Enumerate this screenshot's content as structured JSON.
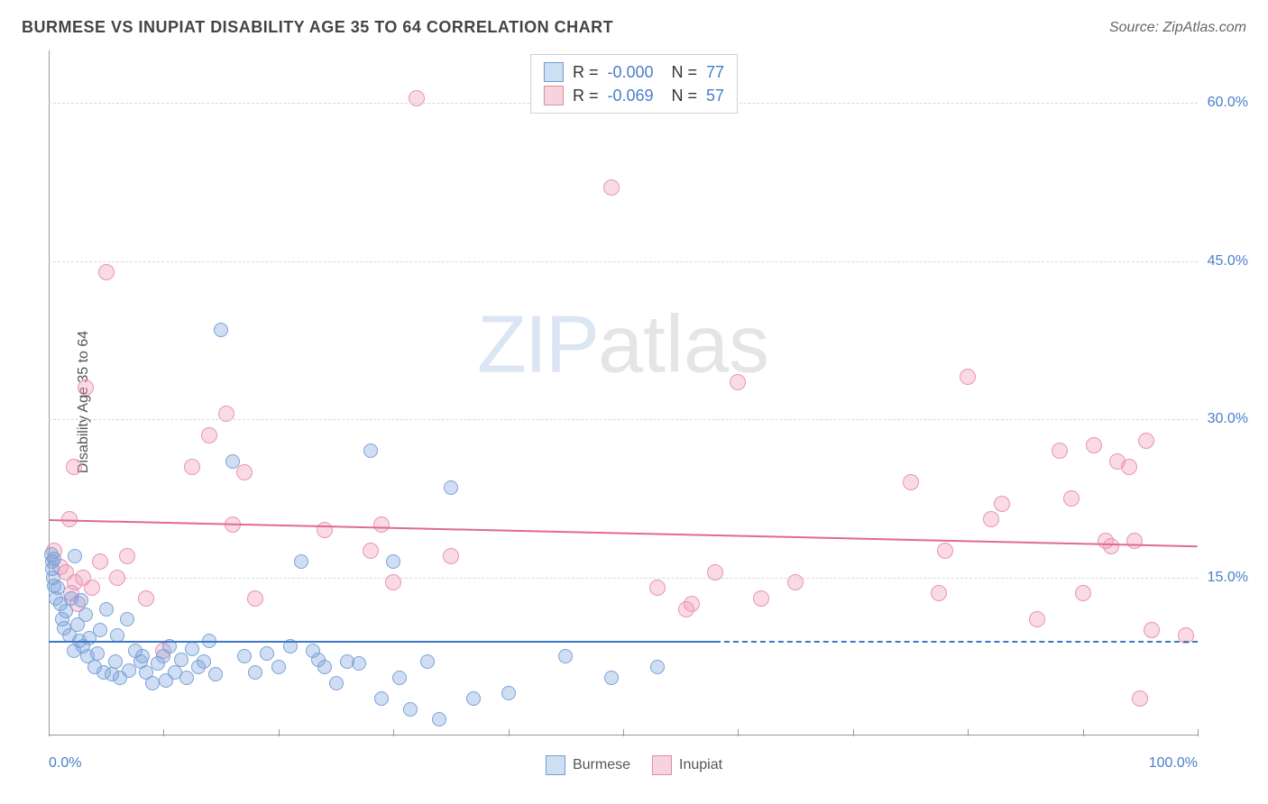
{
  "title": "BURMESE VS INUPIAT DISABILITY AGE 35 TO 64 CORRELATION CHART",
  "source": "Source: ZipAtlas.com",
  "ylabel": "Disability Age 35 to 64",
  "watermark": {
    "prefix": "ZIP",
    "suffix": "atlas"
  },
  "chart": {
    "xlim": [
      0,
      100
    ],
    "ylim": [
      0,
      65
    ],
    "x_min_label": "0.0%",
    "x_max_label": "100.0%",
    "y_ticks": [
      {
        "v": 15,
        "label": "15.0%"
      },
      {
        "v": 30,
        "label": "30.0%"
      },
      {
        "v": 45,
        "label": "45.0%"
      },
      {
        "v": 60,
        "label": "60.0%"
      }
    ],
    "x_tick_step": 10,
    "grid_color": "#d8d8d8"
  },
  "series": {
    "burmese": {
      "label": "Burmese",
      "color_fill": "rgba(120,160,220,0.35)",
      "color_stroke": "#7aa3d8",
      "swatch_fill": "#cddff2",
      "swatch_border": "#6f9dd4",
      "R": "-0.000",
      "N": "77",
      "trend_color": "#3d78c7",
      "trend_y_start": 9.0,
      "trend_y_end": 9.0,
      "solid_x_end": 58,
      "points": [
        [
          0.2,
          17.2
        ],
        [
          0.3,
          16.5
        ],
        [
          0.3,
          15.8
        ],
        [
          0.4,
          15.0
        ],
        [
          0.5,
          14.2
        ],
        [
          0.6,
          13.0
        ],
        [
          0.8,
          14.0
        ],
        [
          1.0,
          12.5
        ],
        [
          0.5,
          16.8
        ],
        [
          1.2,
          11.0
        ],
        [
          1.3,
          10.2
        ],
        [
          1.5,
          11.8
        ],
        [
          1.8,
          9.5
        ],
        [
          2.0,
          13.0
        ],
        [
          2.2,
          8.0
        ],
        [
          2.3,
          17.0
        ],
        [
          2.5,
          10.5
        ],
        [
          2.7,
          9.0
        ],
        [
          2.8,
          12.8
        ],
        [
          3.0,
          8.5
        ],
        [
          3.2,
          11.5
        ],
        [
          3.4,
          7.5
        ],
        [
          3.5,
          9.2
        ],
        [
          4.0,
          6.5
        ],
        [
          4.2,
          7.8
        ],
        [
          4.5,
          10.0
        ],
        [
          4.8,
          6.0
        ],
        [
          5.0,
          12.0
        ],
        [
          5.5,
          5.8
        ],
        [
          5.8,
          7.0
        ],
        [
          6.0,
          9.5
        ],
        [
          6.2,
          5.5
        ],
        [
          6.8,
          11.0
        ],
        [
          7.0,
          6.2
        ],
        [
          7.5,
          8.0
        ],
        [
          8.0,
          7.0
        ],
        [
          8.2,
          7.5
        ],
        [
          8.5,
          6.0
        ],
        [
          9.0,
          5.0
        ],
        [
          9.5,
          6.8
        ],
        [
          10.0,
          7.5
        ],
        [
          10.2,
          5.2
        ],
        [
          10.5,
          8.5
        ],
        [
          11.0,
          6.0
        ],
        [
          11.5,
          7.2
        ],
        [
          12.0,
          5.5
        ],
        [
          12.5,
          8.2
        ],
        [
          13.0,
          6.5
        ],
        [
          13.5,
          7.0
        ],
        [
          14.0,
          9.0
        ],
        [
          14.5,
          5.8
        ],
        [
          15.0,
          38.5
        ],
        [
          16.0,
          26.0
        ],
        [
          17.0,
          7.5
        ],
        [
          18.0,
          6.0
        ],
        [
          19.0,
          7.8
        ],
        [
          20.0,
          6.5
        ],
        [
          21.0,
          8.5
        ],
        [
          22.0,
          16.5
        ],
        [
          23.0,
          8.0
        ],
        [
          23.5,
          7.2
        ],
        [
          24.0,
          6.5
        ],
        [
          25.0,
          5.0
        ],
        [
          26.0,
          7.0
        ],
        [
          27.0,
          6.8
        ],
        [
          28.0,
          27.0
        ],
        [
          29.0,
          3.5
        ],
        [
          30.0,
          16.5
        ],
        [
          30.5,
          5.5
        ],
        [
          31.5,
          2.5
        ],
        [
          33.0,
          7.0
        ],
        [
          34.0,
          1.5
        ],
        [
          35.0,
          23.5
        ],
        [
          37.0,
          3.5
        ],
        [
          40.0,
          4.0
        ],
        [
          45.0,
          7.5
        ],
        [
          49.0,
          5.5
        ],
        [
          53.0,
          6.5
        ]
      ]
    },
    "inupiat": {
      "label": "Inupiat",
      "color_fill": "rgba(240,150,180,0.35)",
      "color_stroke": "#e896b0",
      "swatch_fill": "#f5d4de",
      "swatch_border": "#e08ca8",
      "R": "-0.069",
      "N": "57",
      "trend_color": "#e06b8f",
      "trend_y_start": 20.5,
      "trend_y_end": 18.0,
      "solid_x_end": 100,
      "points": [
        [
          0.5,
          17.5
        ],
        [
          1.0,
          16.0
        ],
        [
          1.5,
          15.5
        ],
        [
          1.8,
          20.5
        ],
        [
          2.0,
          13.5
        ],
        [
          2.2,
          25.5
        ],
        [
          2.3,
          14.5
        ],
        [
          2.5,
          12.5
        ],
        [
          3.0,
          15.0
        ],
        [
          3.2,
          33.0
        ],
        [
          3.8,
          14.0
        ],
        [
          4.5,
          16.5
        ],
        [
          5.0,
          44.0
        ],
        [
          6.0,
          15.0
        ],
        [
          6.8,
          17.0
        ],
        [
          8.5,
          13.0
        ],
        [
          10.0,
          8.0
        ],
        [
          12.5,
          25.5
        ],
        [
          14.0,
          28.5
        ],
        [
          15.5,
          30.5
        ],
        [
          16.0,
          20.0
        ],
        [
          17.0,
          25.0
        ],
        [
          18.0,
          13.0
        ],
        [
          24.0,
          19.5
        ],
        [
          28.0,
          17.5
        ],
        [
          29.0,
          20.0
        ],
        [
          30.0,
          14.5
        ],
        [
          32.0,
          60.5
        ],
        [
          35.0,
          17.0
        ],
        [
          49.0,
          52.0
        ],
        [
          53.0,
          14.0
        ],
        [
          55.5,
          12.0
        ],
        [
          56.0,
          12.5
        ],
        [
          58.0,
          15.5
        ],
        [
          60.0,
          33.5
        ],
        [
          62.0,
          13.0
        ],
        [
          65.0,
          14.5
        ],
        [
          75.0,
          24.0
        ],
        [
          77.5,
          13.5
        ],
        [
          78.0,
          17.5
        ],
        [
          80.0,
          34.0
        ],
        [
          82.0,
          20.5
        ],
        [
          83.0,
          22.0
        ],
        [
          86.0,
          11.0
        ],
        [
          88.0,
          27.0
        ],
        [
          89.0,
          22.5
        ],
        [
          90.0,
          13.5
        ],
        [
          91.0,
          27.5
        ],
        [
          92.0,
          18.5
        ],
        [
          92.5,
          18.0
        ],
        [
          93.0,
          26.0
        ],
        [
          94.0,
          25.5
        ],
        [
          94.5,
          18.5
        ],
        [
          95.0,
          3.5
        ],
        [
          95.5,
          28.0
        ],
        [
          96.0,
          10.0
        ],
        [
          99.0,
          9.5
        ]
      ]
    }
  }
}
